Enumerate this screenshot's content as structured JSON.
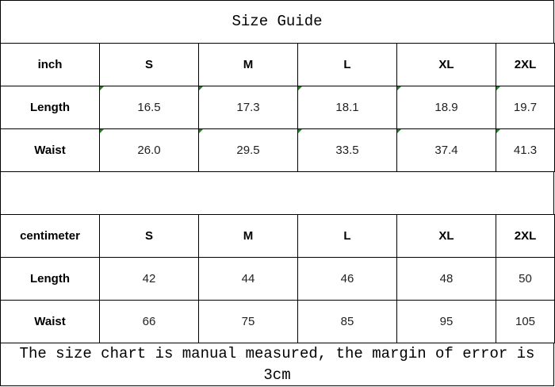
{
  "title": "Size Guide",
  "inch_table": {
    "headers": [
      "inch",
      "S",
      "M",
      "L",
      "XL",
      "2XL"
    ],
    "rows": [
      {
        "label": "Length",
        "values": [
          "16.5",
          "17.3",
          "18.1",
          "18.9",
          "19.7"
        ]
      },
      {
        "label": "Waist",
        "values": [
          "26.0",
          "29.5",
          "33.5",
          "37.4",
          "41.3"
        ]
      }
    ]
  },
  "cm_table": {
    "headers": [
      "centimeter",
      "S",
      "M",
      "L",
      "XL",
      "2XL"
    ],
    "rows": [
      {
        "label": "Length",
        "values": [
          "42",
          "44",
          "46",
          "48",
          "50"
        ]
      },
      {
        "label": "Waist",
        "values": [
          "66",
          "75",
          "85",
          "95",
          "105"
        ]
      }
    ]
  },
  "footer_note": "The size chart is manual measured, the margin of error is 3cm",
  "colors": {
    "border": "#000000",
    "error_marker": "#1a8a1a"
  }
}
